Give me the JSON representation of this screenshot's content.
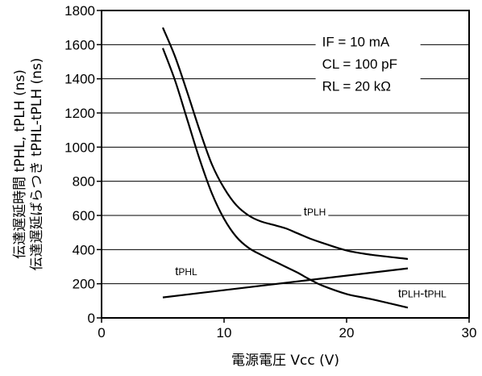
{
  "chart_data": {
    "type": "line",
    "xlabel": "電源電圧 Vcc (V)",
    "ylabel_line1": "伝達遅延時間 tPHL, tPLH (ns)",
    "ylabel_line2": "伝達遅延ばらつき tPHL-tPLH (ns)",
    "xlim": [
      0,
      30
    ],
    "ylim": [
      0,
      1800
    ],
    "x_ticks": [
      "0",
      "10",
      "20",
      "30"
    ],
    "y_ticks": [
      "0",
      "200",
      "400",
      "600",
      "800",
      "1000",
      "1200",
      "1400",
      "1600",
      "1800"
    ],
    "grid": "horizontal (tick marks extended across)",
    "conditions": [
      "IF = 10 mA",
      "CL = 100 pF",
      "RL = 20 kΩ"
    ],
    "series": [
      {
        "name": "tPLH",
        "x": [
          5,
          6,
          7,
          8,
          9,
          10,
          11,
          12,
          13,
          14,
          15,
          16,
          17,
          18,
          20,
          22,
          25
        ],
        "y": [
          1700,
          1530,
          1320,
          1100,
          900,
          760,
          660,
          600,
          565,
          545,
          525,
          495,
          465,
          440,
          395,
          370,
          345
        ]
      },
      {
        "name": "tPLH-tPHL",
        "x": [
          5,
          6,
          7,
          8,
          9,
          10,
          11,
          12,
          13,
          14,
          15,
          16,
          17,
          18,
          20,
          22,
          25
        ],
        "y": [
          1580,
          1390,
          1160,
          930,
          730,
          580,
          475,
          410,
          370,
          335,
          300,
          265,
          225,
          190,
          140,
          110,
          60
        ]
      },
      {
        "name": "tPHL",
        "x": [
          5,
          25
        ],
        "y": [
          120,
          290
        ]
      }
    ]
  }
}
